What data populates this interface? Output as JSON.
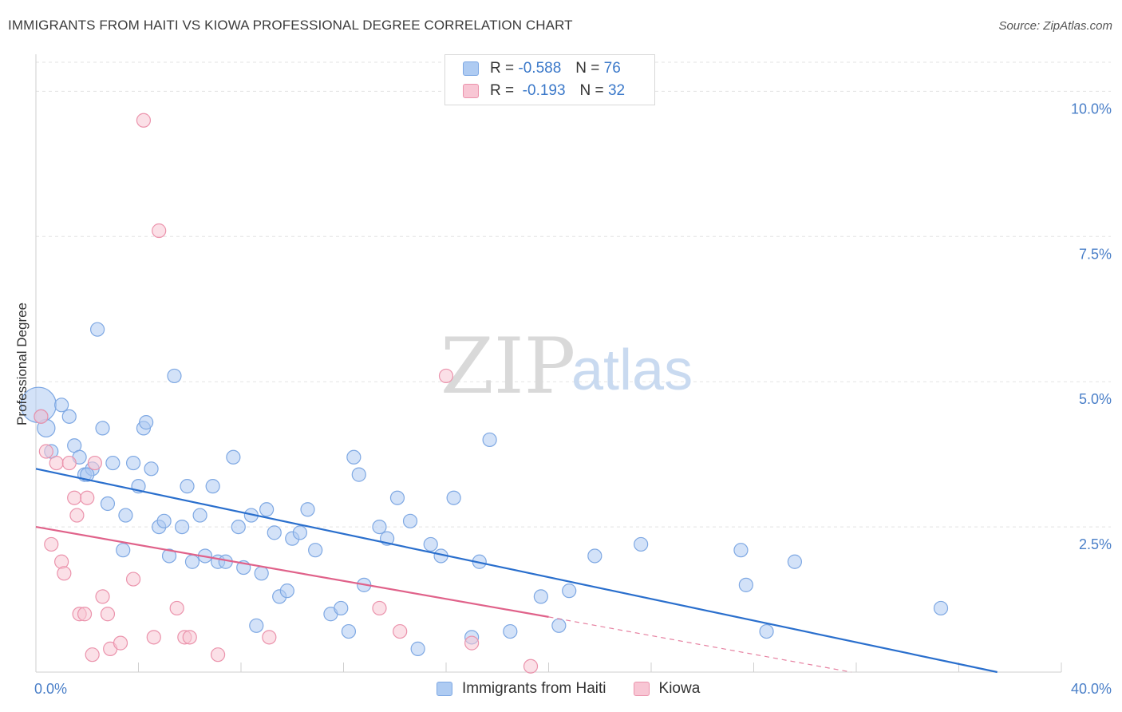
{
  "title": "IMMIGRANTS FROM HAITI VS KIOWA PROFESSIONAL DEGREE CORRELATION CHART",
  "source": "Source: ZipAtlas.com",
  "watermark": {
    "zip": "ZIP",
    "atlas": "atlas"
  },
  "legend": {
    "rows": [
      {
        "r_label": "R =",
        "r_value": "-0.588",
        "n_label": "N =",
        "n_value": "76",
        "color": "#aecbf2",
        "border": "#7ea8e3"
      },
      {
        "r_label": "R =",
        "r_value": "-0.193",
        "n_label": "N =",
        "n_value": "32",
        "color": "#f8c6d4",
        "border": "#eb93ac"
      }
    ]
  },
  "bottom_legend": [
    {
      "label": "Immigrants from Haiti",
      "color": "#aecbf2",
      "border": "#7ea8e3"
    },
    {
      "label": "Kiowa",
      "color": "#f8c6d4",
      "border": "#eb93ac"
    }
  ],
  "chart_data": {
    "type": "scatter",
    "title": "IMMIGRANTS FROM HAITI VS KIOWA PROFESSIONAL DEGREE CORRELATION CHART",
    "xlabel": "",
    "ylabel": "Professional Degree",
    "xlim": [
      0,
      40
    ],
    "ylim": [
      0,
      10.5
    ],
    "x_tick_labels": [
      "0.0%",
      "40.0%"
    ],
    "y_ticks": [
      2.5,
      5.0,
      7.5,
      10.0
    ],
    "y_tick_labels": [
      "2.5%",
      "5.0%",
      "7.5%",
      "10.0%"
    ],
    "grid": true,
    "series": [
      {
        "name": "Immigrants from Haiti",
        "color": "#aecbf2",
        "edge": "#7ea8e3",
        "line_color": "#2a6fcd",
        "trend": {
          "x0": 0,
          "y0": 3.5,
          "x1": 37.5,
          "y1": 0.0
        },
        "points": [
          [
            0.1,
            4.6,
            2.6
          ],
          [
            0.4,
            4.2,
            1.3
          ],
          [
            0.6,
            3.8,
            1
          ],
          [
            1.0,
            4.6,
            1
          ],
          [
            1.3,
            4.4,
            1
          ],
          [
            1.5,
            3.9,
            1
          ],
          [
            1.7,
            3.7,
            1
          ],
          [
            1.9,
            3.4,
            1
          ],
          [
            2.2,
            3.5,
            1
          ],
          [
            2.4,
            5.9,
            1
          ],
          [
            2.6,
            4.2,
            1
          ],
          [
            2.8,
            2.9,
            1
          ],
          [
            3.0,
            3.6,
            1
          ],
          [
            3.4,
            2.1,
            1
          ],
          [
            3.5,
            2.7,
            1
          ],
          [
            3.8,
            3.6,
            1
          ],
          [
            4.0,
            3.2,
            1
          ],
          [
            4.2,
            4.2,
            1
          ],
          [
            4.3,
            4.3,
            1
          ],
          [
            4.5,
            3.5,
            1
          ],
          [
            4.8,
            2.5,
            1
          ],
          [
            5.0,
            2.6,
            1
          ],
          [
            5.2,
            2.0,
            1
          ],
          [
            5.4,
            5.1,
            1
          ],
          [
            5.7,
            2.5,
            1
          ],
          [
            5.9,
            3.2,
            1
          ],
          [
            6.1,
            1.9,
            1
          ],
          [
            6.4,
            2.7,
            1
          ],
          [
            6.6,
            2.0,
            1
          ],
          [
            6.9,
            3.2,
            1
          ],
          [
            7.1,
            1.9,
            1
          ],
          [
            7.4,
            1.9,
            1
          ],
          [
            7.7,
            3.7,
            1
          ],
          [
            7.9,
            2.5,
            1
          ],
          [
            8.1,
            1.8,
            1
          ],
          [
            8.4,
            2.7,
            1
          ],
          [
            8.6,
            0.8,
            1
          ],
          [
            8.8,
            1.7,
            1
          ],
          [
            9.0,
            2.8,
            1
          ],
          [
            9.3,
            2.4,
            1
          ],
          [
            9.5,
            1.3,
            1
          ],
          [
            9.8,
            1.4,
            1
          ],
          [
            10.0,
            2.3,
            1
          ],
          [
            10.3,
            2.4,
            1
          ],
          [
            10.6,
            2.8,
            1
          ],
          [
            10.9,
            2.1,
            1
          ],
          [
            11.5,
            1.0,
            1
          ],
          [
            11.9,
            1.1,
            1
          ],
          [
            12.2,
            0.7,
            1
          ],
          [
            12.4,
            3.7,
            1
          ],
          [
            12.6,
            3.4,
            1
          ],
          [
            12.8,
            1.5,
            1
          ],
          [
            13.4,
            2.5,
            1
          ],
          [
            13.7,
            2.3,
            1
          ],
          [
            14.1,
            3.0,
            1
          ],
          [
            14.6,
            2.6,
            1
          ],
          [
            14.9,
            0.4,
            1
          ],
          [
            15.4,
            2.2,
            1
          ],
          [
            15.8,
            2.0,
            1
          ],
          [
            16.3,
            3.0,
            1
          ],
          [
            17.0,
            0.6,
            1
          ],
          [
            17.3,
            1.9,
            1
          ],
          [
            17.7,
            4.0,
            1
          ],
          [
            18.5,
            0.7,
            1
          ],
          [
            19.7,
            1.3,
            1
          ],
          [
            20.4,
            0.8,
            1
          ],
          [
            20.8,
            1.4,
            1
          ],
          [
            21.8,
            2.0,
            1
          ],
          [
            23.6,
            2.2,
            1
          ],
          [
            27.5,
            2.1,
            1
          ],
          [
            27.7,
            1.5,
            1
          ],
          [
            28.5,
            0.7,
            1
          ],
          [
            29.6,
            1.9,
            1
          ],
          [
            35.3,
            1.1,
            1
          ],
          [
            0.2,
            4.4,
            1
          ],
          [
            2.0,
            3.4,
            1
          ]
        ]
      },
      {
        "name": "Kiowa",
        "color": "#f8c6d4",
        "edge": "#eb93ac",
        "line_color": "#e0628a",
        "trend": {
          "x0": 0,
          "y0": 2.5,
          "x1": 20.0,
          "y1": 0.95
        },
        "trend_dashed_to": {
          "x": 31.8,
          "y": 0.0
        },
        "points": [
          [
            0.2,
            4.4,
            1
          ],
          [
            0.4,
            3.8,
            1
          ],
          [
            0.6,
            2.2,
            1
          ],
          [
            0.8,
            3.6,
            1
          ],
          [
            1.0,
            1.9,
            1
          ],
          [
            1.1,
            1.7,
            1
          ],
          [
            1.3,
            3.6,
            1
          ],
          [
            1.5,
            3.0,
            1
          ],
          [
            1.6,
            2.7,
            1
          ],
          [
            1.7,
            1.0,
            1
          ],
          [
            1.9,
            1.0,
            1
          ],
          [
            2.0,
            3.0,
            1
          ],
          [
            2.2,
            0.3,
            1
          ],
          [
            2.3,
            3.6,
            1
          ],
          [
            2.6,
            1.3,
            1
          ],
          [
            2.8,
            1.0,
            1
          ],
          [
            2.9,
            0.4,
            1
          ],
          [
            3.3,
            0.5,
            1
          ],
          [
            3.8,
            1.6,
            1
          ],
          [
            4.2,
            9.5,
            1
          ],
          [
            4.6,
            0.6,
            1
          ],
          [
            4.8,
            7.6,
            1
          ],
          [
            5.5,
            1.1,
            1
          ],
          [
            5.8,
            0.6,
            1
          ],
          [
            6.0,
            0.6,
            1
          ],
          [
            7.1,
            0.3,
            1
          ],
          [
            9.1,
            0.6,
            1
          ],
          [
            13.4,
            1.1,
            1
          ],
          [
            14.2,
            0.7,
            1
          ],
          [
            16.0,
            5.1,
            1
          ],
          [
            17.0,
            0.5,
            1
          ],
          [
            19.3,
            0.1,
            1
          ]
        ]
      }
    ]
  }
}
